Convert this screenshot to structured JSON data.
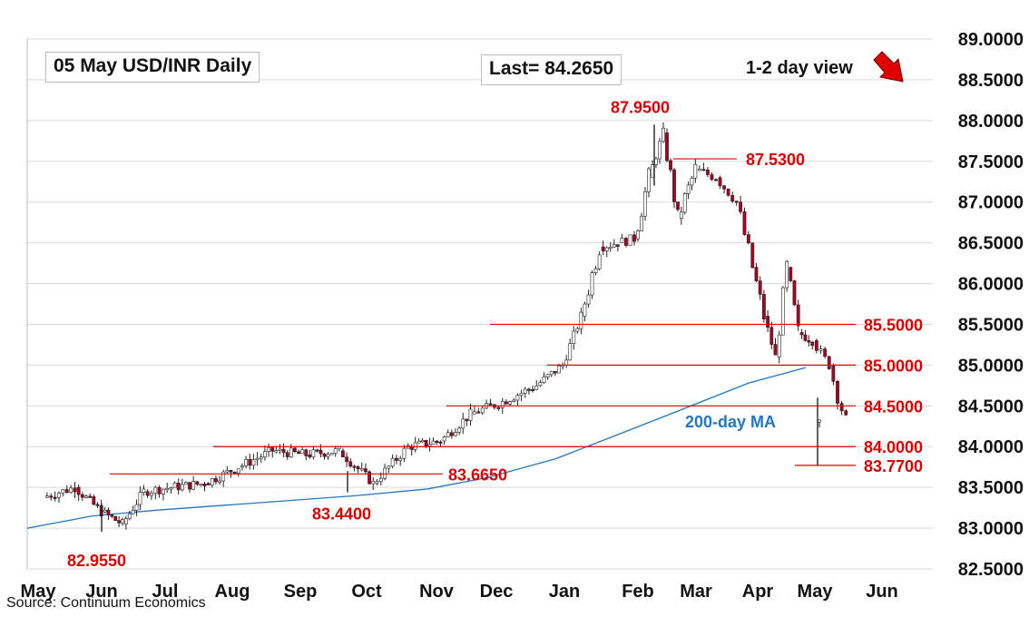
{
  "header": {
    "title": "05 May  USD/INR  Daily",
    "last": "Last= 84.2650",
    "view": "1-2 day view"
  },
  "footer": {
    "source": "Source: Continuum Economics"
  },
  "colors": {
    "level": "#e00000",
    "ma": "#1f77c4",
    "up_candle": "#ffffff",
    "down_candle": "#b00020",
    "arrow": "#e00000",
    "grid": "#d9d9d9"
  },
  "chart_data": {
    "type": "candlestick",
    "ylim": [
      82.5,
      89.0
    ],
    "yticks": [
      "89.0000",
      "88.5000",
      "88.0000",
      "87.5000",
      "87.0000",
      "86.5000",
      "86.0000",
      "85.5000",
      "85.0000",
      "84.5000",
      "84.0000",
      "83.5000",
      "83.0000",
      "82.5000"
    ],
    "x_months": [
      "May",
      "Jun",
      "Jul",
      "Aug",
      "Sep",
      "Oct",
      "Nov",
      "Dec",
      "Jan",
      "Feb",
      "Mar",
      "Apr",
      "May",
      "Jun"
    ],
    "grid": true,
    "levels": [
      {
        "label": "87.9500",
        "value": 87.95
      },
      {
        "label": "87.5300",
        "value": 87.53
      },
      {
        "label": "85.5000",
        "value": 85.5
      },
      {
        "label": "85.0000",
        "value": 85.0
      },
      {
        "label": "84.5000",
        "value": 84.5
      },
      {
        "label": "84.0000",
        "value": 84.0
      },
      {
        "label": "83.7700",
        "value": 83.77
      },
      {
        "label": "83.6650",
        "value": 83.665
      },
      {
        "label": "83.4400",
        "value": 83.44
      },
      {
        "label": "82.9550",
        "value": 82.955
      }
    ],
    "moving_average": {
      "label": "200-day MA",
      "points": [
        [
          "May",
          83.0
        ],
        [
          "Jun",
          83.15
        ],
        [
          "Jul",
          83.22
        ],
        [
          "Aug",
          83.28
        ],
        [
          "Sep",
          83.34
        ],
        [
          "Oct",
          83.4
        ],
        [
          "Nov",
          83.48
        ],
        [
          "Dec",
          83.62
        ],
        [
          "Jan",
          83.85
        ],
        [
          "Feb",
          84.2
        ],
        [
          "Mar",
          84.48
        ],
        [
          "Apr",
          84.78
        ],
        [
          "May",
          84.97
        ]
      ]
    },
    "price_path": [
      [
        "May",
        83.38
      ],
      [
        "May",
        83.5
      ],
      [
        "Jun",
        83.2
      ],
      [
        "Jun",
        83.05
      ],
      [
        "Jun",
        83.45
      ],
      [
        "Jul",
        83.5
      ],
      [
        "Jul",
        83.55
      ],
      [
        "Aug",
        83.75
      ],
      [
        "Aug",
        83.95
      ],
      [
        "Sep",
        83.9
      ],
      [
        "Sep",
        83.95
      ],
      [
        "Oct",
        83.55
      ],
      [
        "Oct",
        84.0
      ],
      [
        "Nov",
        84.07
      ],
      [
        "Nov",
        84.4
      ],
      [
        "Dec",
        84.55
      ],
      [
        "Dec",
        84.75
      ],
      [
        "Jan",
        85.0
      ],
      [
        "Jan",
        85.6
      ],
      [
        "Jan",
        86.45
      ],
      [
        "Jan",
        86.5
      ],
      [
        "Feb",
        86.55
      ],
      [
        "Feb",
        87.3
      ],
      [
        "Feb",
        87.85
      ],
      [
        "Feb",
        86.8
      ],
      [
        "Mar",
        87.4
      ],
      [
        "Mar",
        87.3
      ],
      [
        "Mar",
        87.0
      ],
      [
        "Apr",
        86.2
      ],
      [
        "Apr",
        85.6
      ],
      [
        "Apr",
        85.1
      ],
      [
        "Apr",
        86.2
      ],
      [
        "Apr",
        85.4
      ],
      [
        "May",
        85.3
      ],
      [
        "May",
        85.0
      ],
      [
        "May",
        84.3
      ],
      [
        "May",
        84.27
      ]
    ],
    "last_value": 84.265
  }
}
